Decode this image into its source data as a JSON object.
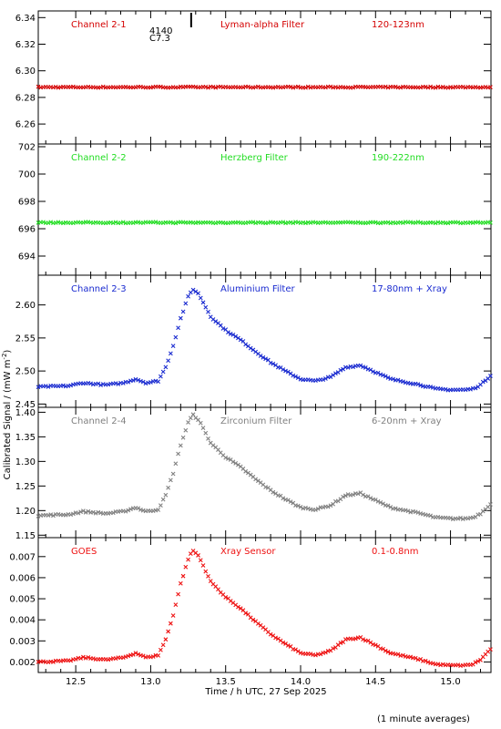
{
  "chart_data": {
    "type": "scatter",
    "xlabel": "Time / h UTC, 27 Sep 2025",
    "ylabel": "Calibrated Signal / (mW m",
    "ylabel_sup": "-2",
    "ylabel_close": ")",
    "footnote": "(1 minute averages)",
    "xlim": [
      12.25,
      15.27
    ],
    "xticks": [
      "12.5",
      "13.0",
      "13.5",
      "14.0",
      "14.5",
      "15.0"
    ],
    "xtick_values": [
      12.5,
      13.0,
      13.5,
      14.0,
      14.5,
      15.0
    ],
    "flare_marker": {
      "x": 13.27,
      "label_number": "4140",
      "label_class": "C7.3"
    },
    "panels": [
      {
        "name": "Channel 2-1",
        "filter": "Lyman-alpha Filter",
        "band": "120-123nm",
        "color": "#d40000",
        "ylim": [
          6.245,
          6.345
        ],
        "yticks": [
          "6.26",
          "6.28",
          "6.30",
          "6.32",
          "6.34"
        ],
        "ytick_values": [
          6.26,
          6.28,
          6.3,
          6.32,
          6.34
        ],
        "profile": {
          "base": 6.2877,
          "peak": 0,
          "noise": 0.0004
        }
      },
      {
        "name": "Channel 2-2",
        "filter": "Herzberg Filter",
        "band": "190-222nm",
        "color": "#22dd22",
        "ylim": [
          692.6,
          702.2
        ],
        "yticks": [
          "694",
          "696",
          "698",
          "700",
          "702"
        ],
        "ytick_values": [
          694,
          696,
          698,
          700,
          702
        ],
        "profile": {
          "base": 696.45,
          "peak": 0,
          "noise": 0.04
        }
      },
      {
        "name": "Channel 2-3",
        "filter": "Aluminium Filter",
        "band": "17-80nm + Xray",
        "color": "#1a2bd0",
        "ylim": [
          2.445,
          2.645
        ],
        "yticks": [
          "2.45",
          "2.50",
          "2.55",
          "2.60"
        ],
        "ytick_values": [
          2.45,
          2.5,
          2.55,
          2.6
        ],
        "profile": {
          "base": 2.476,
          "peak": 0.148,
          "noise": 0.001
        }
      },
      {
        "name": "Channel 2-4",
        "filter": "Zirconium Filter",
        "band": "6-20nm + Xray",
        "color": "#808080",
        "ylim": [
          1.145,
          1.41
        ],
        "yticks": [
          "1.15",
          "1.20",
          "1.25",
          "1.30",
          "1.35",
          "1.40"
        ],
        "ytick_values": [
          1.15,
          1.2,
          1.25,
          1.3,
          1.35,
          1.4
        ],
        "profile": {
          "base": 1.19,
          "peak": 0.205,
          "noise": 0.0015
        }
      },
      {
        "name": "GOES",
        "filter": "Xray Sensor",
        "band": "0.1-0.8nm",
        "color": "#ee1111",
        "ylim": [
          0.0015,
          0.0079
        ],
        "yticks": [
          "0.002",
          "0.003",
          "0.004",
          "0.005",
          "0.006",
          "0.007"
        ],
        "ytick_values": [
          0.002,
          0.003,
          0.004,
          0.005,
          0.006,
          0.007
        ],
        "profile": {
          "base": 0.002,
          "peak": 0.0053,
          "noise": 3e-05
        }
      }
    ],
    "flare_shape": {
      "t": [
        12.25,
        12.45,
        12.55,
        12.7,
        12.82,
        12.9,
        12.97,
        13.05,
        13.1,
        13.15,
        13.2,
        13.25,
        13.28,
        13.32,
        13.4,
        13.5,
        13.6,
        13.7,
        13.8,
        13.9,
        14.0,
        14.1,
        14.2,
        14.3,
        14.4,
        14.5,
        14.6,
        14.7,
        14.8,
        14.9,
        15.0,
        15.1,
        15.15,
        15.2,
        15.27
      ],
      "f": [
        0.0,
        0.01,
        0.04,
        0.02,
        0.04,
        0.08,
        0.04,
        0.06,
        0.2,
        0.42,
        0.7,
        0.92,
        1.0,
        0.95,
        0.72,
        0.58,
        0.48,
        0.36,
        0.25,
        0.16,
        0.08,
        0.06,
        0.1,
        0.2,
        0.22,
        0.15,
        0.08,
        0.05,
        0.02,
        -0.02,
        -0.03,
        -0.03,
        -0.02,
        0.02,
        0.12
      ]
    }
  }
}
